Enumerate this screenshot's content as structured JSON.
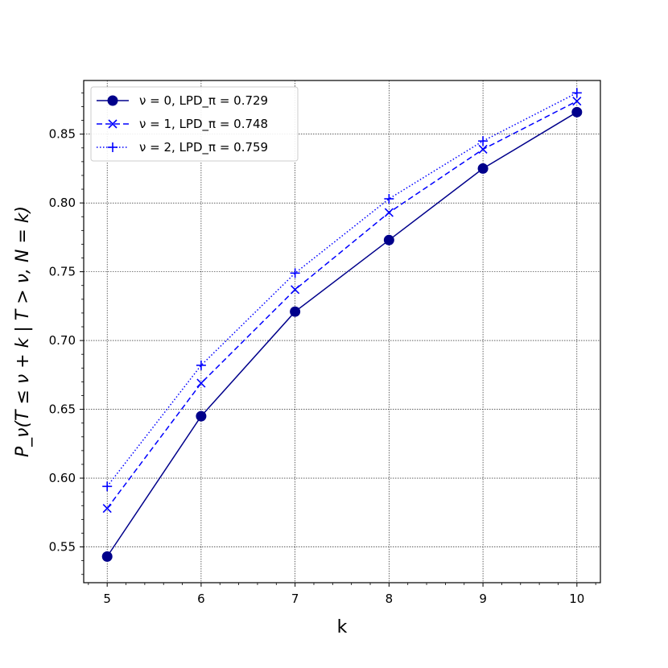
{
  "chart_data": {
    "type": "line",
    "title": "",
    "xlabel": "k",
    "ylabel": "P_ν(T ≤ ν + k | T > ν, N = k)",
    "x": [
      5,
      6,
      7,
      8,
      9,
      10
    ],
    "xlim": [
      4.75,
      10.25
    ],
    "ylim": [
      0.524,
      0.889
    ],
    "xticks": [
      "5",
      "6",
      "7",
      "8",
      "9",
      "10"
    ],
    "yticks": [
      "0.55",
      "0.60",
      "0.65",
      "0.70",
      "0.75",
      "0.80",
      "0.85"
    ],
    "grid": true,
    "legend_position": "top-left",
    "series": [
      {
        "name": "ν = 0, LPD_π = 0.729",
        "color": "#00008b",
        "line_style": "solid",
        "marker": "circle",
        "values": [
          0.543,
          0.645,
          0.721,
          0.773,
          0.825,
          0.866
        ]
      },
      {
        "name": "ν = 1, LPD_π = 0.748",
        "color": "#0000ff",
        "line_style": "dashed",
        "marker": "x",
        "values": [
          0.578,
          0.669,
          0.737,
          0.793,
          0.839,
          0.874
        ]
      },
      {
        "name": "ν = 2, LPD_π = 0.759",
        "color": "#0000ff",
        "line_style": "dotted",
        "marker": "plus",
        "values": [
          0.594,
          0.682,
          0.749,
          0.803,
          0.845,
          0.88
        ]
      }
    ]
  }
}
